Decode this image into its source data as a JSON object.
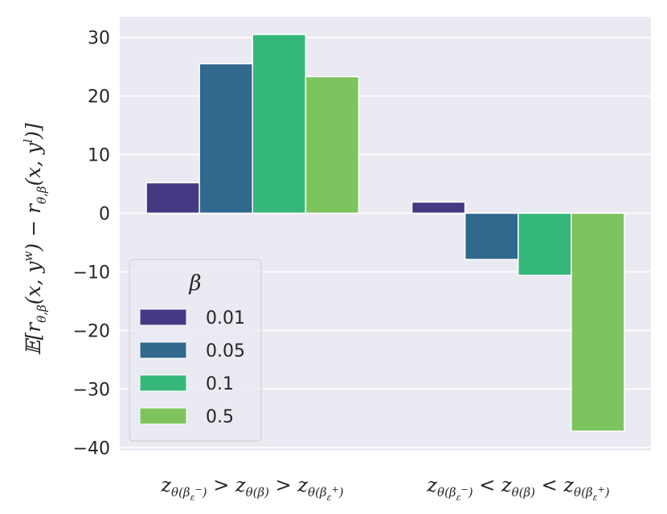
{
  "chart_data": {
    "type": "bar",
    "categories": [
      {
        "main1": "z",
        "sub1": "θ(β",
        "sub2": "ε",
        "sup2": "−",
        "close": ")",
        "op": " > "
      },
      {
        "main1": "z",
        "sub1": "θ(β",
        "sub2": "ε",
        "sup2": "−",
        "close": ")",
        "op": " < "
      }
    ],
    "category_labels": [
      "z_{θ(β_ε^−)} > z_{θ(β)} > z_{θ(β_ε^+)}",
      "z_{θ(β_ε^−)} < z_{θ(β)} < z_{θ(β_ε^+)}"
    ],
    "series": [
      {
        "name": "0.01",
        "color": "#443a83",
        "values": [
          5.2,
          1.9
        ]
      },
      {
        "name": "0.05",
        "color": "#31688e",
        "values": [
          25.5,
          -7.9
        ]
      },
      {
        "name": "0.1",
        "color": "#35b779",
        "values": [
          30.5,
          -10.6
        ]
      },
      {
        "name": "0.5",
        "color": "#7ec35e",
        "values": [
          23.3,
          -37.2
        ]
      }
    ],
    "ylabel": "𝔼[r_{θ,β}(x, y^w) − r_{θ,β}(x, y^l)]",
    "xlabel": "",
    "ylim": [
      -40.5,
      33.5
    ],
    "yticks": [
      30,
      20,
      10,
      0,
      -10,
      -20,
      -30,
      -40
    ],
    "ytick_labels": [
      "30",
      "20",
      "10",
      "0",
      "−10",
      "−20",
      "−30",
      "−40"
    ],
    "legend_title": "β",
    "legend_position": "lower-left",
    "grid": true,
    "background": "#eaeaf2"
  }
}
